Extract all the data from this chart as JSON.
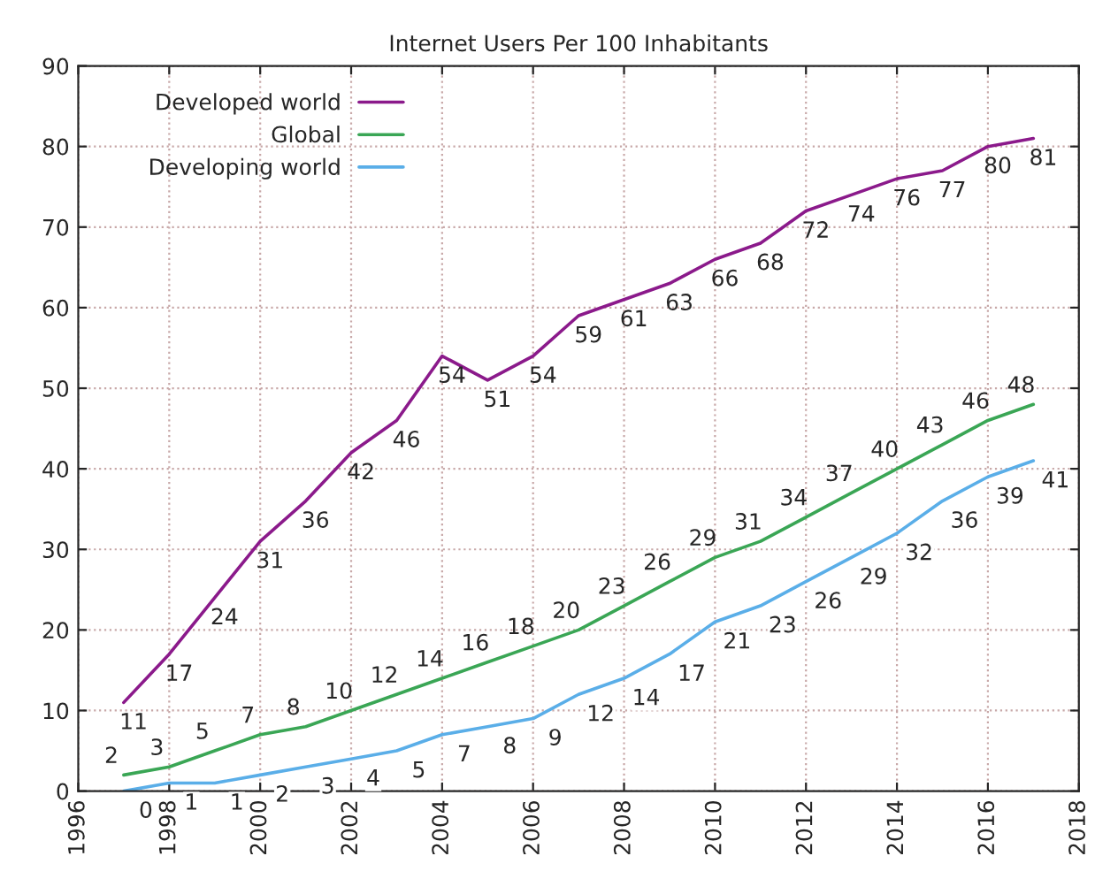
{
  "chart_data": {
    "type": "line",
    "title": "Internet Users Per 100 Inhabitants",
    "x": [
      1997,
      1998,
      1999,
      2000,
      2001,
      2002,
      2003,
      2004,
      2005,
      2006,
      2007,
      2008,
      2009,
      2010,
      2011,
      2012,
      2013,
      2014,
      2015,
      2016,
      2017
    ],
    "series": [
      {
        "name": "Developed world",
        "color": "#8b1a8b",
        "values": [
          11,
          17,
          24,
          31,
          36,
          42,
          46,
          54,
          51,
          54,
          59,
          61,
          63,
          66,
          68,
          72,
          74,
          76,
          77,
          80,
          81
        ]
      },
      {
        "name": "Global",
        "color": "#3aa655",
        "values": [
          2,
          3,
          5,
          7,
          8,
          10,
          12,
          14,
          16,
          18,
          20,
          23,
          26,
          29,
          31,
          34,
          37,
          40,
          43,
          46,
          48
        ]
      },
      {
        "name": "Developing world",
        "color": "#5aaee8",
        "values": [
          0,
          1,
          1,
          2,
          3,
          4,
          5,
          7,
          8,
          9,
          12,
          14,
          17,
          21,
          23,
          26,
          29,
          32,
          36,
          39,
          41
        ]
      }
    ],
    "xlim": [
      1996,
      2018
    ],
    "xticks": [
      1996,
      1998,
      2000,
      2002,
      2004,
      2006,
      2008,
      2010,
      2012,
      2014,
      2016,
      2018
    ],
    "ylim": [
      0,
      90
    ],
    "yticks": [
      0,
      10,
      20,
      30,
      40,
      50,
      60,
      70,
      80,
      90
    ],
    "grid": true,
    "legend": "top left",
    "data_labels": true,
    "marker": "none",
    "line_style": "solid"
  }
}
